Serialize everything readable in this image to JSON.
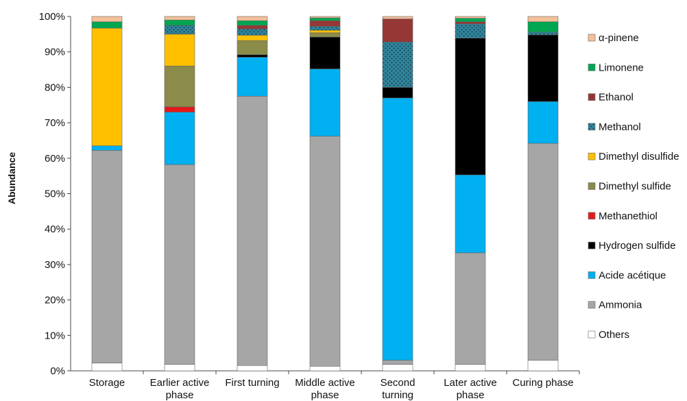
{
  "chart_data": {
    "type": "bar",
    "stacked": true,
    "percent": true,
    "ylabel": "Abundance",
    "xlabel": "",
    "ylim": [
      0,
      100
    ],
    "y_ticks": [
      "0%",
      "10%",
      "20%",
      "30%",
      "40%",
      "50%",
      "60%",
      "70%",
      "80%",
      "90%",
      "100%"
    ],
    "categories": [
      "Storage",
      "Earlier active phase",
      "First turning",
      "Middle active phase",
      "Second turning",
      "Later active phase",
      "Curing phase"
    ],
    "category_labels": [
      [
        "Storage"
      ],
      [
        "Earlier active",
        "phase"
      ],
      [
        "First turning"
      ],
      [
        "Middle active",
        "phase"
      ],
      [
        "Second",
        "turning"
      ],
      [
        "Later active",
        "phase"
      ],
      [
        "Curing phase"
      ]
    ],
    "grid": false,
    "legend_position": "right",
    "series": [
      {
        "name": "Others",
        "color": "#ffffff",
        "pattern": "none",
        "values": [
          2.2,
          1.8,
          1.5,
          1.3,
          1.8,
          1.8,
          3.0
        ]
      },
      {
        "name": "Ammonia",
        "color": "#a6a6a6",
        "pattern": "none",
        "values": [
          60.0,
          56.4,
          76.0,
          64.9,
          1.2,
          31.5,
          61.2
        ]
      },
      {
        "name": "Acide acétique",
        "color": "#00b0f0",
        "pattern": "none",
        "values": [
          1.3,
          14.8,
          11.0,
          19.0,
          74.0,
          22.0,
          11.8
        ]
      },
      {
        "name": "Hydrogen sulfide",
        "color": "#000000",
        "pattern": "none",
        "values": [
          0.0,
          0.0,
          0.7,
          9.0,
          3.0,
          38.6,
          18.8
        ]
      },
      {
        "name": "Methanethiol",
        "color": "#e31a1c",
        "pattern": "none",
        "values": [
          0.0,
          1.5,
          0.0,
          0.0,
          0.0,
          0.0,
          0.0
        ]
      },
      {
        "name": "Dimethyl sulfide",
        "color": "#8b8b4a",
        "pattern": "none",
        "values": [
          0.0,
          11.5,
          4.0,
          1.2,
          0.0,
          0.0,
          0.0
        ]
      },
      {
        "name": "Dimethyl disulfide",
        "color": "#ffc000",
        "pattern": "none",
        "values": [
          33.2,
          9.0,
          1.5,
          0.7,
          0.0,
          0.0,
          0.0
        ]
      },
      {
        "name": "Methanol",
        "color": "#31849b",
        "pattern": "dots",
        "values": [
          0.0,
          2.5,
          1.8,
          1.1,
          12.8,
          4.0,
          0.8
        ]
      },
      {
        "name": "Ethanol",
        "color": "#953735",
        "pattern": "none",
        "values": [
          0.0,
          0.0,
          1.0,
          1.6,
          6.5,
          0.6,
          0.0
        ]
      },
      {
        "name": "Limonene",
        "color": "#00a651",
        "pattern": "none",
        "values": [
          1.8,
          1.5,
          1.3,
          0.8,
          0.0,
          1.0,
          2.9
        ]
      },
      {
        "name": "α-pinene",
        "color": "#f4c09a",
        "pattern": "none",
        "values": [
          1.5,
          1.0,
          1.2,
          0.4,
          0.7,
          0.5,
          1.5
        ]
      }
    ],
    "legend_order": [
      "α-pinene",
      "Limonene",
      "Ethanol",
      "Methanol",
      "Dimethyl disulfide",
      "Dimethyl sulfide",
      "Methanethiol",
      "Hydrogen sulfide",
      "Acide acétique",
      "Ammonia",
      "Others"
    ]
  }
}
